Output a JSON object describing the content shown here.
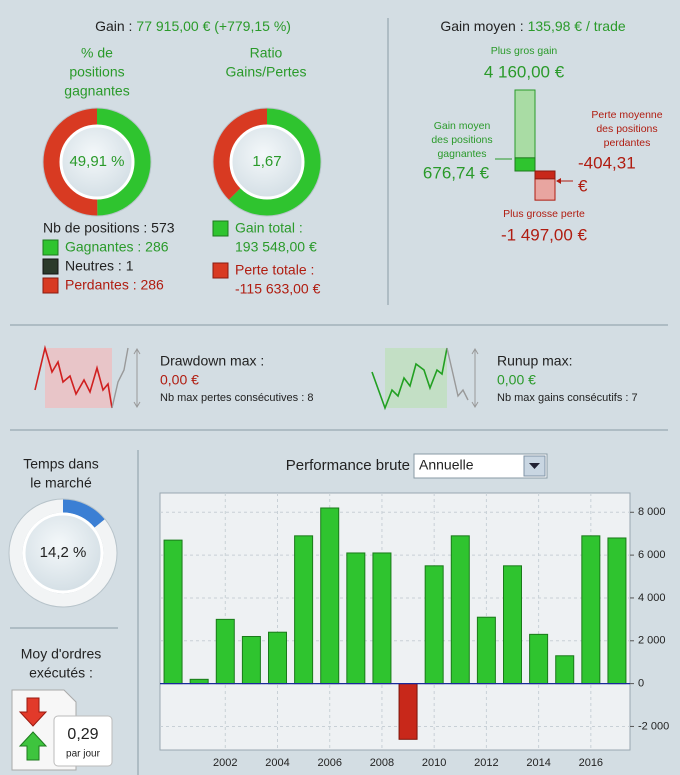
{
  "gain": {
    "label": "Gain :",
    "value": "77 915,00 € (+779,15 %)"
  },
  "win_rate": {
    "title": [
      "% de",
      "positions",
      "gagnantes"
    ],
    "pct": {
      "value": 49.91,
      "label": "49,91 %"
    }
  },
  "ratio": {
    "title": [
      "Ratio",
      "Gains/Pertes"
    ],
    "value": "1,67"
  },
  "positions": {
    "total": "Nb de positions : 573",
    "winners": "Gagnantes : 286",
    "neutral": "Neutres : 1",
    "losers": "Perdantes : 286"
  },
  "gain_total": {
    "label": "Gain total :",
    "value": 193548,
    "value_label": "193 548,00 €"
  },
  "loss_total": {
    "label": "Perte totale :",
    "value": -115633,
    "value_label": "-115 633,00 €"
  },
  "avg": {
    "label": "Gain moyen :",
    "value": "135,98 € / trade",
    "max_gain": {
      "label": "Plus gros gain",
      "value": 4160,
      "value_label": "4 160,00 €"
    },
    "avg_win": {
      "label": [
        "Gain moyen",
        "des positions",
        "gagnantes"
      ],
      "value": 676.74,
      "value_label": "676,74 €"
    },
    "avg_loss": {
      "label": [
        "Perte moyenne",
        "des positions",
        "perdantes"
      ],
      "value": -404.31,
      "value_label": [
        "-404,31",
        "€"
      ]
    },
    "max_loss": {
      "label": "Plus grosse perte",
      "value": -1497,
      "value_label": "-1 497,00 €"
    }
  },
  "drawdown": {
    "title": "Drawdown max :",
    "value": "0,00 €",
    "note": "Nb max pertes consécutives : 8"
  },
  "runup": {
    "title": "Runup max:",
    "value": "0,00 €",
    "note": "Nb max gains consécutifs : 7"
  },
  "market_time": {
    "title": [
      "Temps dans",
      "le marché"
    ],
    "pct": {
      "value": 14.2,
      "label": "14,2 %"
    }
  },
  "orders": {
    "title": [
      "Moy d'ordres",
      "exécutés :"
    ],
    "value": "0,29",
    "unit": "par jour"
  },
  "chart_data": {
    "type": "bar",
    "title": "Performance brute",
    "period": "Annuelle",
    "categories": [
      null,
      null,
      "2002",
      null,
      "2004",
      null,
      "2006",
      null,
      "2008",
      null,
      "2010",
      null,
      "2012",
      null,
      "2014",
      null,
      "2016",
      null
    ],
    "values": [
      6700,
      200,
      3000,
      2200,
      2400,
      6900,
      8200,
      6100,
      6100,
      -2600,
      5500,
      6900,
      3100,
      5500,
      2300,
      1300,
      6900,
      6800
    ],
    "color": "#2fc42f",
    "negative_color": "#c8281a",
    "ylim": [
      -3100,
      8900
    ],
    "yticks": [
      {
        "value": -2000,
        "label": "-2 000"
      },
      0,
      {
        "value": 2000,
        "label": "2 000"
      },
      {
        "value": 4000,
        "label": "4 000"
      },
      {
        "value": 6000,
        "label": "6 000"
      },
      {
        "value": 8000,
        "label": "8 000"
      }
    ],
    "grid": true
  }
}
